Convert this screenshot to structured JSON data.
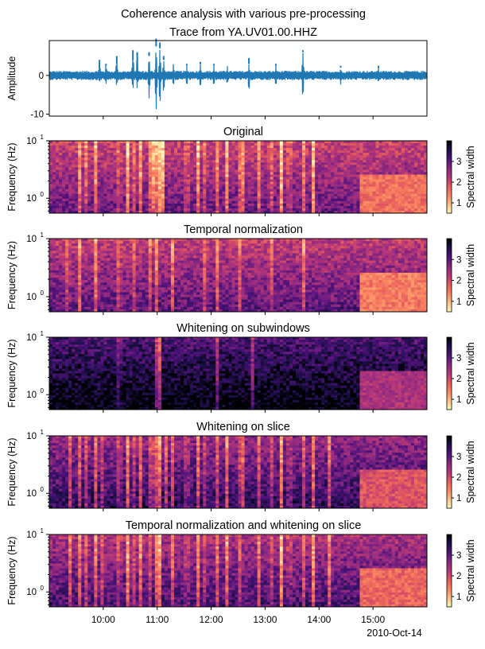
{
  "figure": {
    "suptitle": "Coherence analysis with various pre-processing",
    "date_label": "2010-Oct-14"
  },
  "colors": {
    "trace": "#1f77b4",
    "magma_r": [
      "#fcfdbf",
      "#fec287",
      "#fb8761",
      "#e55c5c",
      "#b73779",
      "#8c2981",
      "#51127c",
      "#221150",
      "#000004"
    ]
  },
  "chart_data": [
    {
      "type": "line",
      "title": "Trace from YA.UV01.00.HHZ",
      "ylabel": "Amplitude",
      "ylim": [
        -10.5,
        9
      ],
      "yticks": [
        "-10",
        "0"
      ],
      "yticks_values": [
        -10,
        0
      ],
      "x_range_hours": [
        9.0,
        16.0
      ],
      "noise_level": 1.2,
      "spikes": [
        {
          "t": 9.93,
          "hi": 4.0,
          "lo": -2.0
        },
        {
          "t": 10.05,
          "hi": 3.0,
          "lo": -2.5
        },
        {
          "t": 10.25,
          "hi": 5.0,
          "lo": -3.0
        },
        {
          "t": 10.55,
          "hi": 6.5,
          "lo": -4.0
        },
        {
          "t": 10.63,
          "hi": 6.0,
          "lo": -3.5
        },
        {
          "t": 10.85,
          "hi": 5.0,
          "lo": -6.0
        },
        {
          "t": 10.98,
          "hi": 7.5,
          "lo": -9.5
        },
        {
          "t": 11.05,
          "hi": 7.0,
          "lo": -8.5
        },
        {
          "t": 11.12,
          "hi": 4.0,
          "lo": -5.0
        },
        {
          "t": 11.3,
          "hi": 3.0,
          "lo": -3.0
        },
        {
          "t": 11.55,
          "hi": 2.5,
          "lo": -3.0
        },
        {
          "t": 11.8,
          "hi": 3.0,
          "lo": -3.5
        },
        {
          "t": 12.05,
          "hi": 2.5,
          "lo": -3.0
        },
        {
          "t": 12.3,
          "hi": 2.5,
          "lo": -2.5
        },
        {
          "t": 12.7,
          "hi": 3.0,
          "lo": -4.5
        },
        {
          "t": 13.2,
          "hi": 2.5,
          "lo": -3.0
        },
        {
          "t": 13.7,
          "hi": 6.0,
          "lo": -6.5
        },
        {
          "t": 14.4,
          "hi": 2.0,
          "lo": -2.5
        },
        {
          "t": 15.1,
          "hi": 2.5,
          "lo": -2.0
        }
      ]
    },
    {
      "type": "heatmap",
      "title": "Original",
      "ylabel": "Frequency (Hz)",
      "colorbar_label": "Spectral width",
      "colorbar_ticks": [
        "1",
        "2",
        "3"
      ],
      "colorbar_tick_values": [
        1,
        2,
        3
      ],
      "clim": [
        0.5,
        4.0
      ],
      "yticks": [
        "10",
        "10"
      ],
      "yticks_exp": [
        "1",
        "0"
      ],
      "ylim_hz": [
        0.55,
        10
      ],
      "x_range_hours": [
        9.0,
        16.0
      ],
      "base": 2.1,
      "night_level": 1.6,
      "events": [
        9.55,
        9.7,
        9.85,
        10.3,
        10.45,
        10.55,
        10.7,
        10.85,
        10.92,
        11.0,
        11.05,
        11.1,
        11.55,
        11.75,
        11.9,
        12.1,
        12.3,
        12.55,
        12.6,
        12.9,
        13.1,
        13.3,
        13.45,
        13.7,
        13.9
      ]
    },
    {
      "type": "heatmap",
      "title": "Temporal normalization",
      "ylabel": "Frequency (Hz)",
      "colorbar_label": "Spectral width",
      "colorbar_ticks": [
        "1",
        "2",
        "3"
      ],
      "colorbar_tick_values": [
        1,
        2,
        3
      ],
      "clim": [
        0.5,
        4.0
      ],
      "yticks": [
        "10",
        "10"
      ],
      "yticks_exp": [
        "1",
        "0"
      ],
      "ylim_hz": [
        0.55,
        10
      ],
      "x_range_hours": [
        9.0,
        16.0
      ],
      "base": 2.2,
      "night_level": 1.5,
      "events": [
        9.35,
        9.55,
        9.85,
        10.3,
        10.55,
        10.85,
        11.0,
        11.3,
        11.9,
        12.1,
        12.55,
        13.1,
        13.7
      ]
    },
    {
      "type": "heatmap",
      "title": "Whitening on subwindows",
      "ylabel": "Frequency (Hz)",
      "colorbar_label": "Spectral width",
      "colorbar_ticks": [
        "1",
        "2",
        "3"
      ],
      "colorbar_tick_values": [
        1,
        2,
        3
      ],
      "clim": [
        0.5,
        4.0
      ],
      "yticks": [
        "10",
        "10"
      ],
      "yticks_exp": [
        "1",
        "0"
      ],
      "ylim_hz": [
        0.55,
        10
      ],
      "x_range_hours": [
        9.0,
        16.0
      ],
      "base": 3.2,
      "night_level": 2.4,
      "events": [
        10.3,
        11.0,
        11.05,
        12.1,
        12.75
      ]
    },
    {
      "type": "heatmap",
      "title": "Whitening on slice",
      "ylabel": "Frequency (Hz)",
      "colorbar_label": "Spectral width",
      "colorbar_ticks": [
        "1",
        "2",
        "3"
      ],
      "colorbar_tick_values": [
        1,
        2,
        3
      ],
      "clim": [
        0.5,
        4.0
      ],
      "yticks": [
        "10",
        "10"
      ],
      "yticks_exp": [
        "1",
        "0"
      ],
      "ylim_hz": [
        0.55,
        10
      ],
      "x_range_hours": [
        9.0,
        16.0
      ],
      "base": 2.6,
      "night_level": 1.9,
      "events": [
        9.4,
        9.55,
        9.7,
        9.85,
        10.0,
        10.3,
        10.45,
        10.55,
        10.7,
        10.85,
        10.95,
        11.0,
        11.05,
        11.15,
        11.3,
        11.55,
        11.75,
        11.9,
        12.1,
        12.3,
        12.55,
        12.6,
        12.9,
        13.1,
        13.3,
        13.45,
        13.7,
        13.9,
        14.2
      ]
    },
    {
      "type": "heatmap",
      "title": "Temporal normalization and whitening on slice",
      "ylabel": "Frequency (Hz)",
      "colorbar_label": "Spectral width",
      "colorbar_ticks": [
        "1",
        "2",
        "3"
      ],
      "colorbar_tick_values": [
        1,
        2,
        3
      ],
      "clim": [
        0.5,
        4.0
      ],
      "yticks": [
        "10",
        "10"
      ],
      "yticks_exp": [
        "1",
        "0"
      ],
      "ylim_hz": [
        0.55,
        10
      ],
      "x_range_hours": [
        9.0,
        16.0
      ],
      "base": 2.4,
      "night_level": 1.7,
      "events": [
        9.4,
        9.55,
        9.7,
        9.85,
        10.0,
        10.3,
        10.45,
        10.55,
        10.7,
        10.85,
        11.0,
        11.05,
        11.3,
        11.55,
        11.75,
        11.9,
        12.1,
        12.3,
        12.55,
        12.9,
        13.1,
        13.3,
        13.45,
        13.7,
        13.9,
        14.2
      ]
    }
  ],
  "x_axis": {
    "tick_labels": [
      "10:00",
      "11:00",
      "12:00",
      "13:00",
      "14:00",
      "15:00"
    ],
    "tick_hours": [
      10,
      11,
      12,
      13,
      14,
      15
    ]
  }
}
